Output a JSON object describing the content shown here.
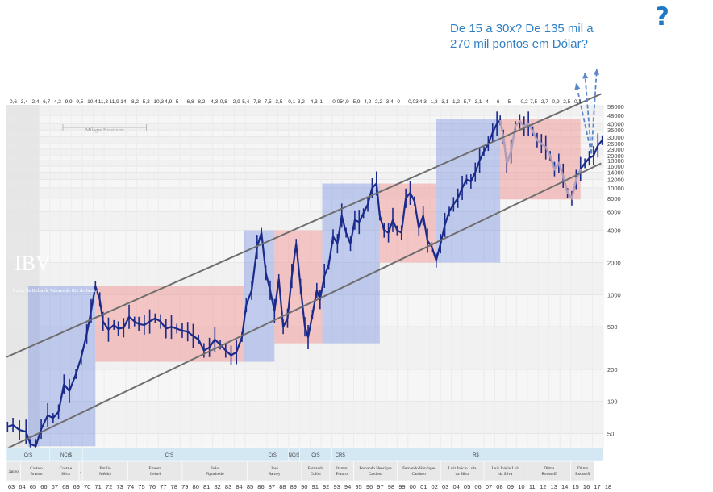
{
  "chart_data": {
    "type": "line",
    "title": "",
    "xlabel": "",
    "ylabel": "",
    "scale": "log",
    "ylim": [
      35,
      60000
    ],
    "watermark": "IBV",
    "subtitle_faint": "Índice da Bolsa de Valores do Rio de Janeiro",
    "annotation_milagre": "Milagre Brasileiro",
    "y_ticks": [
      50,
      100,
      200,
      500,
      1000,
      2000,
      4000,
      6000,
      8000,
      10000,
      12000,
      14000,
      16000,
      18000,
      20000,
      23000,
      26000,
      30000,
      35000,
      40000,
      48000,
      58000
    ],
    "x_labels": [
      "63",
      "64",
      "65",
      "66",
      "67",
      "68",
      "69",
      "70",
      "71",
      "72",
      "73",
      "74",
      "75",
      "76",
      "77",
      "78",
      "79",
      "80",
      "81",
      "82",
      "83",
      "84",
      "85",
      "86",
      "87",
      "88",
      "89",
      "90",
      "91",
      "92",
      "93",
      "94",
      "95",
      "96",
      "97",
      "98",
      "99",
      "00",
      "01",
      "02",
      "03",
      "04",
      "05",
      "06",
      "07",
      "08",
      "09",
      "10",
      "11",
      "12",
      "13",
      "14",
      "15",
      "16",
      "17",
      "18"
    ],
    "top_values": [
      "0,6",
      "3,4",
      "2,4",
      "6,7",
      "4,2",
      "9,9",
      "9,5",
      "10,4",
      "11,3",
      "11,9",
      "14",
      "8,2",
      "5,2",
      "10,3",
      "4,9",
      "5",
      "6,8",
      "8,2",
      "-4,3",
      "0,8",
      "-2,9",
      "5,4",
      "7,8",
      "7,5",
      "3,5",
      "-0,1",
      "3,2",
      "-4,3",
      "1",
      "-0,05",
      "4,9",
      "5,9",
      "4,2",
      "2,2",
      "3,4",
      "0",
      "0,03",
      "4,3",
      "1,3",
      "3,1",
      "1,2",
      "5,7",
      "3,1",
      "4",
      "6",
      "5",
      "-0,2",
      "7,5",
      "2,7",
      "0,9",
      "2,5",
      "0,1"
    ],
    "parties": [
      {
        "label": "CrS",
        "from": 1963.0,
        "to": 1967.0
      },
      {
        "label": "NCr$",
        "from": 1967.0,
        "to": 1970.0
      },
      {
        "label": "CrS",
        "from": 1970.0,
        "to": 1986.0
      },
      {
        "label": "CrS",
        "from": 1986.0,
        "to": 1989.0
      },
      {
        "label": "NCr$",
        "from": 1989.0,
        "to": 1990.0
      },
      {
        "label": "CrS",
        "from": 1990.0,
        "to": 1993.0
      },
      {
        "label": "CR$",
        "from": 1993.0,
        "to": 1994.5
      },
      {
        "label": "R$",
        "from": 1994.5,
        "to": 2018.0
      }
    ],
    "presidents": [
      {
        "label": "Jango",
        "from": 1963.0,
        "to": 1964.3
      },
      {
        "label": "Castelo Branco",
        "from": 1964.3,
        "to": 1967.2
      },
      {
        "label": "Costa e Silva",
        "from": 1967.2,
        "to": 1969.7
      },
      {
        "label": "J",
        "from": 1969.7,
        "to": 1970.0
      },
      {
        "label": "Emílio Médici",
        "from": 1970.0,
        "to": 1974.2
      },
      {
        "label": "Ernesto Geisel",
        "from": 1974.2,
        "to": 1979.2
      },
      {
        "label": "João Figueiredo",
        "from": 1979.2,
        "to": 1985.2
      },
      {
        "label": "José Sarney",
        "from": 1985.2,
        "to": 1990.2
      },
      {
        "label": "Fernando Collor",
        "from": 1990.2,
        "to": 1992.8
      },
      {
        "label": "Itamar Franco",
        "from": 1992.8,
        "to": 1995.0
      },
      {
        "label": "Fernando Henrique Cardoso",
        "from": 1995.0,
        "to": 1999.0
      },
      {
        "label": "Fernando Henrique Cardoso",
        "from": 1999.0,
        "to": 2003.0
      },
      {
        "label": "Luiz Inácio Lula da Silva",
        "from": 2003.0,
        "to": 2007.0
      },
      {
        "label": "Luiz Inácio Lula da Silva",
        "from": 2007.0,
        "to": 2011.0
      },
      {
        "label": "Dilma Rousseff",
        "from": 2011.0,
        "to": 2015.0
      },
      {
        "label": "Dilma Rousseff",
        "from": 2015.0,
        "to": 2017.2
      }
    ],
    "phases": [
      {
        "kind": "bull",
        "from": 1965.0,
        "to": 1971.2,
        "low": 38,
        "high": 1200
      },
      {
        "kind": "bear",
        "from": 1971.2,
        "to": 1984.9,
        "low": 235,
        "high": 1200
      },
      {
        "kind": "bull",
        "from": 1984.9,
        "to": 1987.7,
        "low": 235,
        "high": 4000
      },
      {
        "kind": "bear",
        "from": 1987.7,
        "to": 1992.1,
        "low": 350,
        "high": 4000
      },
      {
        "kind": "bull",
        "from": 1992.1,
        "to": 1997.4,
        "low": 350,
        "high": 11000
      },
      {
        "kind": "bear",
        "from": 1997.4,
        "to": 2002.6,
        "low": 2000,
        "high": 11000
      },
      {
        "kind": "bull",
        "from": 2002.6,
        "to": 2008.5,
        "low": 2000,
        "high": 44000
      },
      {
        "kind": "bear",
        "from": 2008.5,
        "to": 2015.9,
        "low": 7800,
        "high": 44000
      }
    ],
    "series": [
      {
        "name": "",
        "x": [
          1963.1,
          1963.6,
          1964.2,
          1964.8,
          1965.2,
          1965.7,
          1966.2,
          1966.8,
          1967.3,
          1967.8,
          1968.3,
          1968.8,
          1969.4,
          1969.9,
          1970.4,
          1970.8,
          1971.2,
          1971.6,
          1971.9,
          1972.4,
          1972.9,
          1973.3,
          1973.8,
          1974.3,
          1974.8,
          1975.2,
          1975.7,
          1976.2,
          1976.7,
          1977.2,
          1977.7,
          1978.2,
          1978.7,
          1979.2,
          1979.7,
          1980.2,
          1980.7,
          1981.2,
          1981.7,
          1982.2,
          1982.7,
          1983.2,
          1983.7,
          1984.2,
          1984.7,
          1985.1,
          1985.6,
          1986.1,
          1986.5,
          1986.9,
          1987.3,
          1987.7,
          1988.1,
          1988.5,
          1988.9,
          1989.3,
          1989.7,
          1990.1,
          1990.5,
          1990.8,
          1991.2,
          1991.6,
          1991.9,
          1992.3,
          1992.7,
          1993.1,
          1993.5,
          1993.9,
          1994.3,
          1994.7,
          1995.1,
          1995.5,
          1995.9,
          1996.3,
          1996.7,
          1997.1,
          1997.4,
          1997.8,
          1998.2,
          1998.6,
          1999.0,
          1999.4,
          1999.8,
          2000.2,
          2000.6,
          2001.0,
          2001.4,
          2001.8,
          2002.2,
          2002.6,
          2003.0,
          2003.4,
          2003.8,
          2004.2,
          2004.6,
          2005.0,
          2005.4,
          2005.8,
          2006.2,
          2006.6,
          2007.0,
          2007.4,
          2007.8,
          2008.2,
          2008.5,
          2008.8,
          2009.1,
          2009.5,
          2009.9,
          2010.3,
          2010.7,
          2011.1,
          2011.5,
          2011.9,
          2012.3,
          2012.7,
          2013.1,
          2013.5,
          2013.9,
          2014.3,
          2014.7,
          2015.1,
          2015.5,
          2015.9,
          2016.3,
          2016.7,
          2017.1,
          2017.5,
          2017.9
        ],
        "y": [
          58,
          60,
          54,
          52,
          40,
          38,
          55,
          74,
          70,
          80,
          145,
          125,
          180,
          260,
          430,
          700,
          1200,
          900,
          560,
          470,
          520,
          480,
          490,
          620,
          560,
          530,
          520,
          560,
          600,
          560,
          480,
          500,
          480,
          460,
          450,
          410,
          380,
          300,
          320,
          380,
          340,
          300,
          270,
          290,
          400,
          800,
          1100,
          2800,
          3800,
          1600,
          1100,
          700,
          1400,
          500,
          600,
          1500,
          3000,
          1200,
          500,
          400,
          650,
          1100,
          900,
          1500,
          1900,
          3500,
          3000,
          5500,
          3800,
          3000,
          5000,
          4800,
          5800,
          7000,
          10000,
          11000,
          5500,
          4000,
          3800,
          5000,
          4000,
          3800,
          8000,
          9000,
          7500,
          4200,
          5500,
          3200,
          2800,
          2100,
          3000,
          4500,
          6000,
          7000,
          8000,
          10000,
          12000,
          11500,
          14000,
          18000,
          22000,
          26000,
          33000,
          40000,
          43000,
          30000,
          17000,
          22000,
          38000,
          42000,
          38000,
          40000,
          34000,
          28000,
          26000,
          24000,
          20000,
          15000,
          17000,
          13000,
          9000,
          8000,
          12000,
          15000,
          17000,
          19000,
          20000,
          25000,
          28000
        ]
      }
    ],
    "channel_upper": {
      "x": [
        1963.0,
        2017.8
      ],
      "y": [
        260,
        76000
      ]
    },
    "channel_lower": {
      "x": [
        1963.0,
        2017.8
      ],
      "y": [
        36,
        17000
      ]
    },
    "projection_start": {
      "x": 2016.9,
      "y": 21000
    },
    "projection_targets": [
      {
        "x": 2015.5,
        "y": 95000
      },
      {
        "x": 2016.3,
        "y": 120000
      },
      {
        "x": 2017.4,
        "y": 130000
      }
    ]
  },
  "callout_line1": "De 15 a 30x? De 135 mil a",
  "callout_line2": "270 mil pontos em Dólar?",
  "question_mark": "?",
  "colors": {
    "bull": "#5b7be0",
    "bear": "#f08a8a",
    "series": "#1b2b8a",
    "channel": "#6e6e6e",
    "projection": "#5b87c7",
    "callout": "#2f7fc4"
  }
}
